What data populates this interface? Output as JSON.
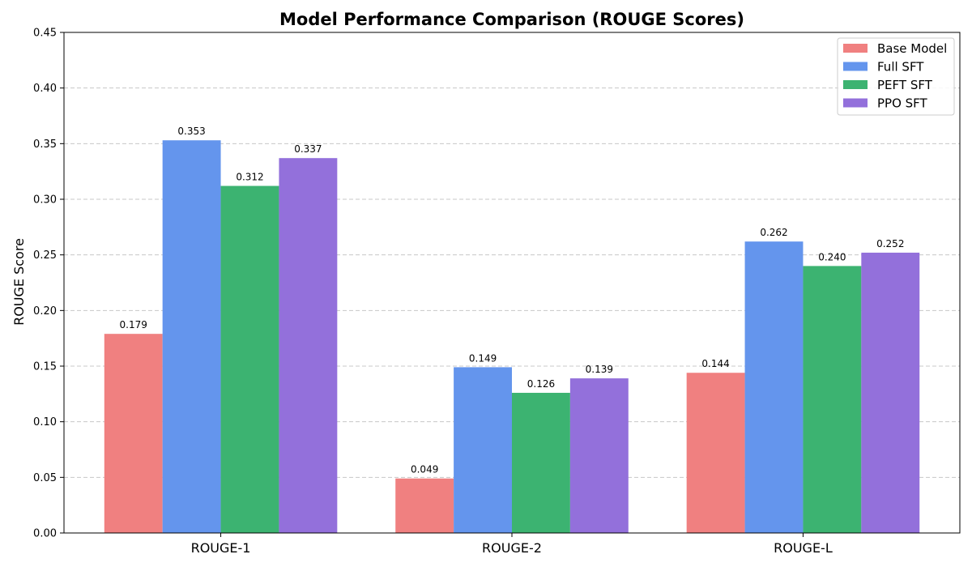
{
  "chart_data": {
    "type": "bar",
    "title": "Model Performance Comparison (ROUGE Scores)",
    "xlabel": "",
    "ylabel": "ROUGE Score",
    "categories": [
      "ROUGE-1",
      "ROUGE-2",
      "ROUGE-L"
    ],
    "series": [
      {
        "name": "Base Model",
        "color": "#f08080",
        "values": [
          0.179,
          0.049,
          0.144
        ],
        "labels": [
          "0.179",
          "0.049",
          "0.144"
        ]
      },
      {
        "name": "Full SFT",
        "color": "#6495ed",
        "values": [
          0.353,
          0.149,
          0.262
        ],
        "labels": [
          "0.353",
          "0.149",
          "0.262"
        ]
      },
      {
        "name": "PEFT SFT",
        "color": "#3cb371",
        "values": [
          0.312,
          0.126,
          0.24
        ],
        "labels": [
          "0.312",
          "0.126",
          "0.240"
        ]
      },
      {
        "name": "PPO SFT",
        "color": "#9370db",
        "values": [
          0.337,
          0.139,
          0.252
        ],
        "labels": [
          "0.337",
          "0.139",
          "0.252"
        ]
      }
    ],
    "ylim": [
      0,
      0.45
    ],
    "yticks": [
      "0.00",
      "0.05",
      "0.10",
      "0.15",
      "0.20",
      "0.25",
      "0.30",
      "0.35",
      "0.40",
      "0.45"
    ],
    "grid": "y-dashed",
    "legend_position": "top-right"
  }
}
